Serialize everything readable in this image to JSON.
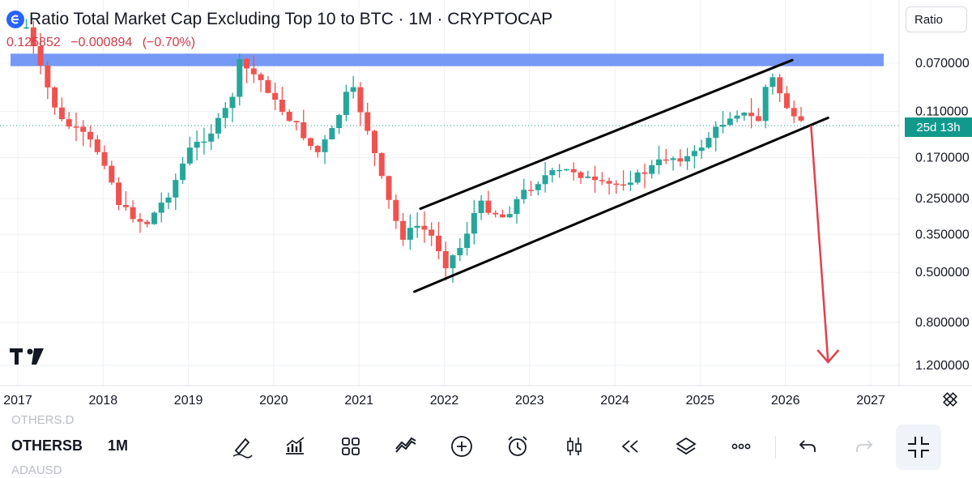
{
  "header": {
    "title": "Ratio Total Market Cap Excluding Top 10 to BTC · 1M · CRYPTOCAP",
    "price": "0.125852",
    "change": "−0.000894",
    "change_pct": "(−0.70%)"
  },
  "scale_mode": "Ratio",
  "countdown": "25d 13h",
  "colors": {
    "up": "#26a69a",
    "down": "#ef5350",
    "band": "#6f93f5",
    "arrow": "#e0404e",
    "countdown_bg": "#11998e"
  },
  "chart_data": {
    "type": "candlestick",
    "title": "Ratio Total Market Cap Excluding Top 10 to BTC · 1M · CRYPTOCAP",
    "xlabel": "",
    "ylabel": "Ratio",
    "y_scale": "log",
    "y_inverted": true,
    "y_ticks": [
      "0.070000",
      "0.110000",
      "0.170000",
      "0.250000",
      "0.350000",
      "0.500000",
      "0.800000",
      "1.200000"
    ],
    "x_ticks": [
      "2017",
      "2018",
      "2019",
      "2020",
      "2021",
      "2022",
      "2023",
      "2024",
      "2025",
      "2026",
      "2027"
    ],
    "last_value": 0.125852,
    "close_series": [
      {
        "t": 2017.1,
        "close": 0.05
      },
      {
        "t": 2017.3,
        "close": 0.08
      },
      {
        "t": 2017.5,
        "close": 0.12
      },
      {
        "t": 2017.8,
        "close": 0.14
      },
      {
        "t": 2018.0,
        "close": 0.17
      },
      {
        "t": 2018.2,
        "close": 0.27
      },
      {
        "t": 2018.5,
        "close": 0.32
      },
      {
        "t": 2018.8,
        "close": 0.23
      },
      {
        "t": 2019.0,
        "close": 0.16
      },
      {
        "t": 2019.3,
        "close": 0.13
      },
      {
        "t": 2019.5,
        "close": 0.1
      },
      {
        "t": 2019.6,
        "close": 0.07
      },
      {
        "t": 2019.9,
        "close": 0.085
      },
      {
        "t": 2020.0,
        "close": 0.1
      },
      {
        "t": 2020.3,
        "close": 0.13
      },
      {
        "t": 2020.5,
        "close": 0.165
      },
      {
        "t": 2020.7,
        "close": 0.13
      },
      {
        "t": 2020.9,
        "close": 0.085
      },
      {
        "t": 2021.1,
        "close": 0.13
      },
      {
        "t": 2021.3,
        "close": 0.23
      },
      {
        "t": 2021.5,
        "close": 0.36
      },
      {
        "t": 2021.7,
        "close": 0.32
      },
      {
        "t": 2021.9,
        "close": 0.37
      },
      {
        "t": 2022.0,
        "close": 0.47
      },
      {
        "t": 2022.2,
        "close": 0.39
      },
      {
        "t": 2022.4,
        "close": 0.26
      },
      {
        "t": 2022.7,
        "close": 0.3
      },
      {
        "t": 2022.9,
        "close": 0.24
      },
      {
        "t": 2023.2,
        "close": 0.2
      },
      {
        "t": 2023.5,
        "close": 0.19
      },
      {
        "t": 2023.8,
        "close": 0.22
      },
      {
        "t": 2024.0,
        "close": 0.22
      },
      {
        "t": 2024.3,
        "close": 0.2
      },
      {
        "t": 2024.6,
        "close": 0.17
      },
      {
        "t": 2024.9,
        "close": 0.17
      },
      {
        "t": 2025.1,
        "close": 0.14
      },
      {
        "t": 2025.4,
        "close": 0.11
      },
      {
        "t": 2025.7,
        "close": 0.12
      },
      {
        "t": 2025.8,
        "close": 0.075
      },
      {
        "t": 2026.1,
        "close": 0.12
      },
      {
        "t": 2026.2,
        "close": 0.126
      }
    ],
    "annotations": {
      "resistance_band": {
        "from": 0.064,
        "to": 0.072
      },
      "channel_upper": {
        "start": {
          "t": 2021.72,
          "value": 0.275
        },
        "end": {
          "t": 2026.08,
          "value": 0.068
        }
      },
      "channel_lower": {
        "start": {
          "t": 2021.65,
          "value": 0.6
        },
        "end": {
          "t": 2026.5,
          "value": 0.117
        }
      },
      "projected_arrow": {
        "from": {
          "t": 2026.3,
          "value": 0.126
        },
        "to": {
          "t": 2026.5,
          "value": 1.2
        }
      }
    }
  },
  "toolbar": {
    "symbol": "OTHERSB",
    "interval": "1M",
    "ghost_above": "OTHERS.D",
    "ghost_below": "ADAUSD"
  }
}
